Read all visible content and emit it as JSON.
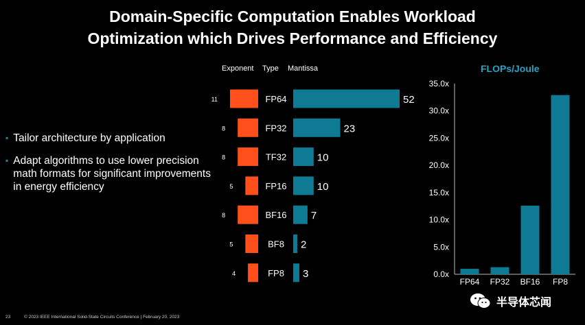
{
  "slide": {
    "title_line1": "Domain-Specific Computation Enables Workload",
    "title_line2": "Optimization which Drives Performance and Efficiency",
    "bullets": [
      "Tailor architecture by application",
      "Adapt algorithms to use lower precision math formats for significant improvements in energy efficiency"
    ],
    "footer_page": "23",
    "footer_text": "© 2023 IEEE International Solid-State Circuits Conference  |  February 20, 2023",
    "watermark_text": "半导体芯闻"
  },
  "colors": {
    "exponent": "#ff4f1a",
    "mantissa": "#0e7a94",
    "bar": "#0e7a94",
    "accent": "#2aa3c3"
  },
  "chart_data": [
    {
      "type": "bar",
      "orientation": "horizontal",
      "headers": {
        "exponent": "Exponent",
        "type": "Type",
        "mantissa": "Mantissa"
      },
      "categories": [
        "FP64",
        "FP32",
        "TF32",
        "FP16",
        "BF16",
        "BF8",
        "FP8"
      ],
      "series": [
        {
          "name": "Exponent",
          "values": [
            11,
            8,
            8,
            5,
            8,
            5,
            4
          ]
        },
        {
          "name": "Mantissa",
          "values": [
            52,
            23,
            10,
            10,
            7,
            2,
            3
          ]
        }
      ]
    },
    {
      "type": "bar",
      "title": "FLOPs/Joule",
      "categories": [
        "FP64",
        "FP32",
        "BF16",
        "FP8"
      ],
      "values": [
        1.0,
        1.3,
        12.6,
        32.9
      ],
      "ylim": [
        0,
        35
      ],
      "yticks": [
        "0.0x",
        "5.0x",
        "10.0x",
        "15.0x",
        "20.0x",
        "25.0x",
        "30.0x",
        "35.0x"
      ],
      "grid": false
    }
  ]
}
